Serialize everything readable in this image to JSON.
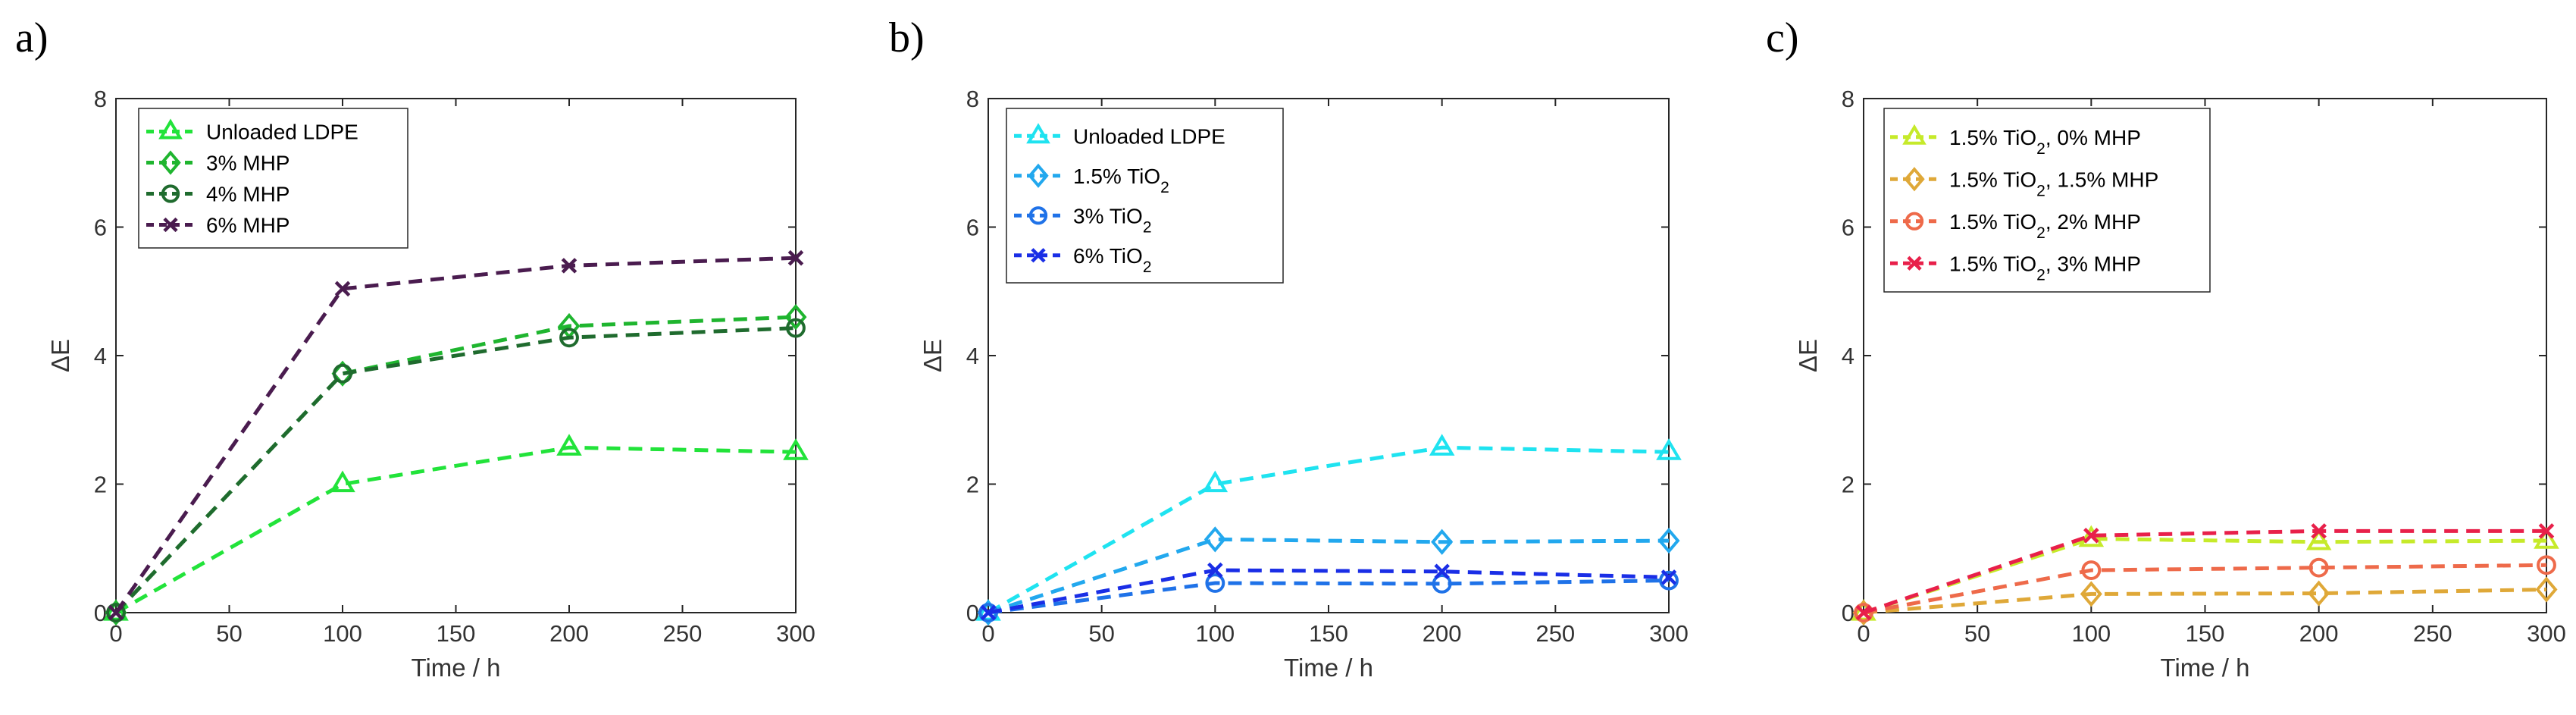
{
  "figure": {
    "axis_text_color": "#333333",
    "frame_color": "#262626"
  },
  "chart_data": [
    {
      "panel": "a)",
      "type": "line",
      "xlabel": "Time / h",
      "ylabel": "ΔE",
      "xlim": [
        0,
        300
      ],
      "ylim": [
        0,
        8
      ],
      "xticks": [
        "0",
        "50",
        "100",
        "150",
        "200",
        "250",
        "300"
      ],
      "yticks": [
        "0",
        "2",
        "4",
        "6",
        "8"
      ],
      "legend_position": "top-left",
      "x": [
        0,
        100,
        200,
        300
      ],
      "series": [
        {
          "name": "Unloaded LDPE",
          "sub": "",
          "suffix": "",
          "marker": "triangle",
          "color": "#22e33a",
          "values": [
            0,
            2.0,
            2.57,
            2.5
          ]
        },
        {
          "name": "3% MHP",
          "sub": "",
          "suffix": "",
          "marker": "diamond",
          "color": "#1fb52f",
          "values": [
            0,
            3.72,
            4.46,
            4.6
          ]
        },
        {
          "name": "4% MHP",
          "sub": "",
          "suffix": "",
          "marker": "circle",
          "color": "#1f6b2e",
          "values": [
            0,
            3.72,
            4.28,
            4.43
          ]
        },
        {
          "name": "6% MHP",
          "sub": "",
          "suffix": "",
          "marker": "x",
          "color": "#4a1c4f",
          "values": [
            0,
            5.04,
            5.4,
            5.52
          ]
        }
      ]
    },
    {
      "panel": "b)",
      "type": "line",
      "xlabel": "Time / h",
      "ylabel": "ΔE",
      "xlim": [
        0,
        300
      ],
      "ylim": [
        0,
        8
      ],
      "xticks": [
        "0",
        "50",
        "100",
        "150",
        "200",
        "250",
        "300"
      ],
      "yticks": [
        "0",
        "2",
        "4",
        "6",
        "8"
      ],
      "legend_position": "top-left",
      "x": [
        0,
        100,
        200,
        300
      ],
      "series": [
        {
          "name": "Unloaded LDPE",
          "sub": "",
          "suffix": "",
          "marker": "triangle",
          "color": "#1fe3f0",
          "values": [
            0,
            2.0,
            2.57,
            2.5
          ]
        },
        {
          "name": "1.5% TiO",
          "sub": "2",
          "suffix": "",
          "marker": "diamond",
          "color": "#22a8ee",
          "values": [
            0,
            1.14,
            1.1,
            1.12
          ]
        },
        {
          "name": "3% TiO",
          "sub": "2",
          "suffix": "",
          "marker": "circle",
          "color": "#1f72e8",
          "values": [
            0,
            0.46,
            0.45,
            0.5
          ]
        },
        {
          "name": "6% TiO",
          "sub": "2",
          "suffix": "",
          "marker": "x",
          "color": "#1a2ee6",
          "values": [
            0,
            0.66,
            0.64,
            0.55
          ]
        }
      ]
    },
    {
      "panel": "c)",
      "type": "line",
      "xlabel": "Time / h",
      "ylabel": "ΔE",
      "xlim": [
        0,
        300
      ],
      "ylim": [
        0,
        8
      ],
      "xticks": [
        "0",
        "50",
        "100",
        "150",
        "200",
        "250",
        "300"
      ],
      "yticks": [
        "0",
        "2",
        "4",
        "6",
        "8"
      ],
      "legend_position": "top-left",
      "x": [
        0,
        100,
        200,
        300
      ],
      "series": [
        {
          "name": "1.5% TiO",
          "sub": "2",
          "suffix": ", 0% MHP",
          "marker": "triangle",
          "color": "#c6ea2a",
          "values": [
            0,
            1.15,
            1.1,
            1.12
          ]
        },
        {
          "name": "1.5% TiO",
          "sub": "2",
          "suffix": ", 1.5% MHP",
          "marker": "diamond",
          "color": "#dfa838",
          "values": [
            0,
            0.29,
            0.3,
            0.36
          ]
        },
        {
          "name": "1.5% TiO",
          "sub": "2",
          "suffix": ", 2% MHP",
          "marker": "circle",
          "color": "#ee6a4a",
          "values": [
            0,
            0.66,
            0.7,
            0.74
          ]
        },
        {
          "name": "1.5% TiO",
          "sub": "2",
          "suffix": ", 3% MHP",
          "marker": "x",
          "color": "#e8204a",
          "values": [
            0,
            1.2,
            1.27,
            1.27
          ]
        }
      ]
    }
  ]
}
